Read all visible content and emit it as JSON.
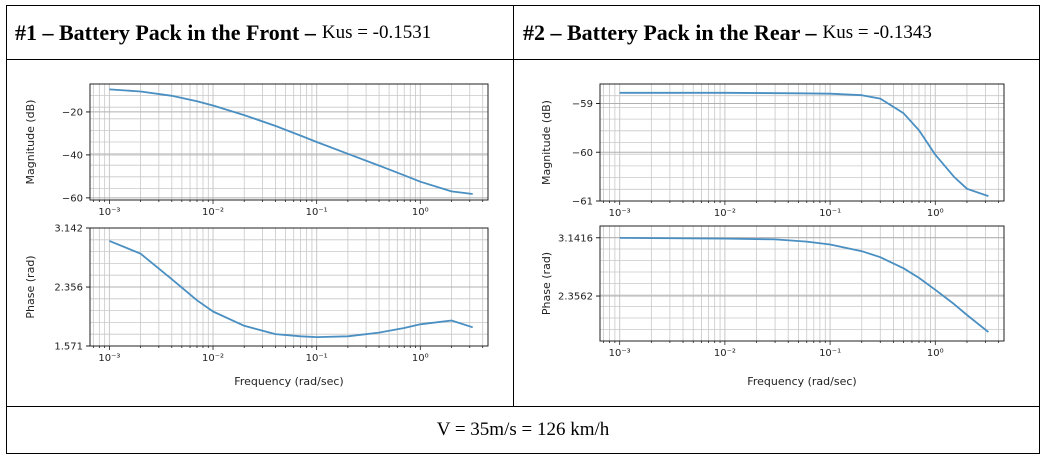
{
  "headers": [
    {
      "title": "#1 – Battery Pack in the Front –",
      "kus": "Kus = -0.1531"
    },
    {
      "title": "#2 – Battery Pack in the Rear –",
      "kus": "Kus = -0.1343"
    }
  ],
  "footer": "V = 35m/s = 126 km/h",
  "colors": {
    "line": "#4a8fc2",
    "grid": "#c8c8c8",
    "axis": "#222222"
  },
  "chart_data": [
    {
      "type": "line",
      "panel": "front",
      "plot": "magnitude",
      "xlabel": "",
      "ylabel": "Magnitude (dB)",
      "xscale": "log",
      "xlim": [
        0.00065,
        4.5
      ],
      "ylim": [
        -61,
        -7
      ],
      "xticks": [
        0.001,
        0.01,
        0.1,
        1
      ],
      "xtick_labels": [
        "10⁻³",
        "10⁻²",
        "10⁻¹",
        "10⁰"
      ],
      "yticks": [
        -20,
        -40,
        -60
      ],
      "ytick_labels": [
        "−20",
        "−40",
        "−60"
      ],
      "x": [
        0.001,
        0.002,
        0.004,
        0.007,
        0.01,
        0.02,
        0.04,
        0.07,
        0.1,
        0.2,
        0.4,
        0.7,
        1.0,
        2.0,
        3.2
      ],
      "y": [
        -9.5,
        -10.5,
        -12.5,
        -15,
        -17,
        -21.5,
        -26.5,
        -31,
        -34,
        -39.5,
        -45,
        -49.5,
        -52.5,
        -57,
        -58.2
      ]
    },
    {
      "type": "line",
      "panel": "front",
      "plot": "phase",
      "xlabel": "Frequency (rad/sec)",
      "ylabel": "Phase (rad)",
      "xscale": "log",
      "xlim": [
        0.00065,
        4.5
      ],
      "ylim": [
        1.571,
        3.142
      ],
      "xticks": [
        0.001,
        0.01,
        0.1,
        1
      ],
      "xtick_labels": [
        "10⁻³",
        "10⁻²",
        "10⁻¹",
        "10⁰"
      ],
      "yticks": [
        3.142,
        2.356,
        1.571
      ],
      "ytick_labels": [
        "3.142",
        "2.356",
        "1.571"
      ],
      "x": [
        0.001,
        0.002,
        0.004,
        0.007,
        0.01,
        0.02,
        0.04,
        0.07,
        0.1,
        0.2,
        0.4,
        0.7,
        1.0,
        2.0,
        3.2
      ],
      "y": [
        2.97,
        2.8,
        2.46,
        2.18,
        2.03,
        1.84,
        1.73,
        1.7,
        1.69,
        1.7,
        1.75,
        1.81,
        1.86,
        1.91,
        1.82
      ]
    },
    {
      "type": "line",
      "panel": "rear",
      "plot": "magnitude",
      "xlabel": "",
      "ylabel": "Magnitude (dB)",
      "xscale": "log",
      "xlim": [
        0.00065,
        4.5
      ],
      "ylim": [
        -61,
        -58.6
      ],
      "xticks": [
        0.001,
        0.01,
        0.1,
        1
      ],
      "xtick_labels": [
        "10⁻³",
        "10⁻²",
        "10⁻¹",
        "10⁰"
      ],
      "yticks": [
        -59,
        -60,
        -61
      ],
      "ytick_labels": [
        "−59",
        "−60",
        "−61"
      ],
      "x": [
        0.001,
        0.01,
        0.05,
        0.1,
        0.2,
        0.3,
        0.5,
        0.7,
        1.0,
        1.5,
        2.0,
        3.2
      ],
      "y": [
        -58.78,
        -58.78,
        -58.79,
        -58.8,
        -58.83,
        -58.9,
        -59.2,
        -59.55,
        -60.05,
        -60.5,
        -60.75,
        -60.9
      ]
    },
    {
      "type": "line",
      "panel": "rear",
      "plot": "phase",
      "xlabel": "Frequency (rad/sec)",
      "ylabel": "Phase (rad)",
      "xscale": "log",
      "xlim": [
        0.00065,
        4.5
      ],
      "ylim": [
        1.75,
        3.3
      ],
      "xticks": [
        0.001,
        0.01,
        0.1,
        1
      ],
      "xtick_labels": [
        "10⁻³",
        "10⁻²",
        "10⁻¹",
        "10⁰"
      ],
      "yticks": [
        3.1416,
        2.3562
      ],
      "ytick_labels": [
        "3.1416",
        "2.3562"
      ],
      "x": [
        0.001,
        0.01,
        0.03,
        0.06,
        0.1,
        0.2,
        0.3,
        0.5,
        0.7,
        1.0,
        1.5,
        2.0,
        3.2
      ],
      "y": [
        3.14,
        3.13,
        3.12,
        3.09,
        3.05,
        2.96,
        2.88,
        2.73,
        2.6,
        2.44,
        2.25,
        2.1,
        1.87
      ]
    }
  ]
}
